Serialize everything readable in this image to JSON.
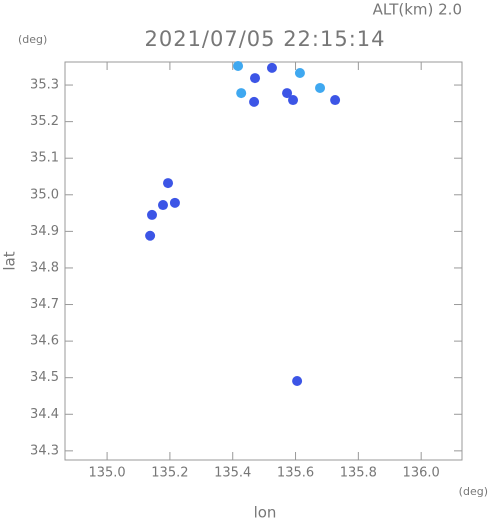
{
  "chart_data": {
    "type": "scatter",
    "title": "2021/07/05 22:15:14",
    "subtitle": "ALT(km) 2.0",
    "x_label": "lon",
    "x_unit": "(deg)",
    "y_label": "lat",
    "y_unit": "(deg)",
    "xlim": [
      134.866,
      136.13
    ],
    "ylim": [
      34.275,
      35.363
    ],
    "xticks": [
      {
        "value": 135.0,
        "label": "135.0"
      },
      135.2,
      135.4,
      135.6,
      135.8,
      {
        "value": 136.0,
        "label": "136.0"
      }
    ],
    "yticks": [
      34.3,
      34.4,
      34.5,
      34.6,
      34.7,
      34.8,
      34.9,
      {
        "value": 35.0,
        "label": "35.0"
      },
      35.1,
      35.2,
      35.3
    ],
    "series": [
      {
        "color": "#3c55e6",
        "x": [
          135.525,
          135.471,
          135.468,
          135.573,
          135.592,
          135.726,
          135.143,
          135.178,
          135.216,
          135.194,
          135.137,
          135.605
        ],
        "y": [
          35.347,
          35.319,
          35.254,
          35.278,
          35.259,
          35.259,
          34.945,
          34.972,
          34.978,
          35.032,
          34.888,
          34.491
        ]
      },
      {
        "color": "#3fa8f0",
        "x": [
          135.427,
          135.614,
          135.678,
          135.417
        ],
        "y": [
          35.278,
          35.333,
          35.292,
          35.352
        ]
      }
    ]
  }
}
